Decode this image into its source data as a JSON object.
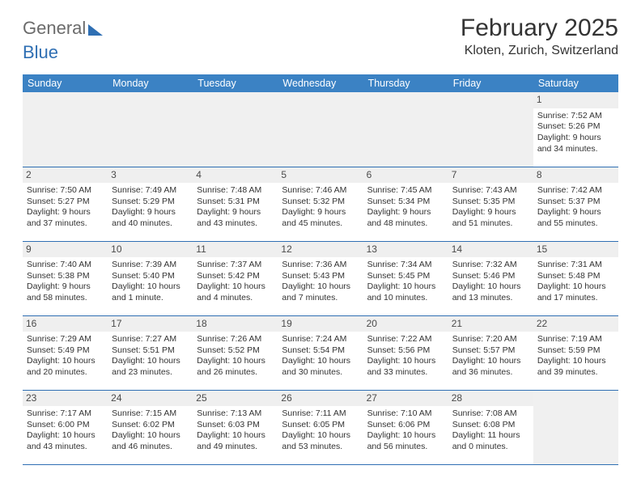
{
  "logo": {
    "word1": "General",
    "word2": "Blue"
  },
  "title": "February 2025",
  "location": "Kloten, Zurich, Switzerland",
  "colors": {
    "header_bg": "#3b82c4",
    "header_text": "#ffffff",
    "rule": "#2f6fb3",
    "daynum_bg": "#efefef",
    "text": "#333333"
  },
  "weekdays": [
    "Sunday",
    "Monday",
    "Tuesday",
    "Wednesday",
    "Thursday",
    "Friday",
    "Saturday"
  ],
  "leading_blanks": 6,
  "days": [
    {
      "n": 1,
      "sunrise": "7:52 AM",
      "sunset": "5:26 PM",
      "daylight": "9 hours and 34 minutes."
    },
    {
      "n": 2,
      "sunrise": "7:50 AM",
      "sunset": "5:27 PM",
      "daylight": "9 hours and 37 minutes."
    },
    {
      "n": 3,
      "sunrise": "7:49 AM",
      "sunset": "5:29 PM",
      "daylight": "9 hours and 40 minutes."
    },
    {
      "n": 4,
      "sunrise": "7:48 AM",
      "sunset": "5:31 PM",
      "daylight": "9 hours and 43 minutes."
    },
    {
      "n": 5,
      "sunrise": "7:46 AM",
      "sunset": "5:32 PM",
      "daylight": "9 hours and 45 minutes."
    },
    {
      "n": 6,
      "sunrise": "7:45 AM",
      "sunset": "5:34 PM",
      "daylight": "9 hours and 48 minutes."
    },
    {
      "n": 7,
      "sunrise": "7:43 AM",
      "sunset": "5:35 PM",
      "daylight": "9 hours and 51 minutes."
    },
    {
      "n": 8,
      "sunrise": "7:42 AM",
      "sunset": "5:37 PM",
      "daylight": "9 hours and 55 minutes."
    },
    {
      "n": 9,
      "sunrise": "7:40 AM",
      "sunset": "5:38 PM",
      "daylight": "9 hours and 58 minutes."
    },
    {
      "n": 10,
      "sunrise": "7:39 AM",
      "sunset": "5:40 PM",
      "daylight": "10 hours and 1 minute."
    },
    {
      "n": 11,
      "sunrise": "7:37 AM",
      "sunset": "5:42 PM",
      "daylight": "10 hours and 4 minutes."
    },
    {
      "n": 12,
      "sunrise": "7:36 AM",
      "sunset": "5:43 PM",
      "daylight": "10 hours and 7 minutes."
    },
    {
      "n": 13,
      "sunrise": "7:34 AM",
      "sunset": "5:45 PM",
      "daylight": "10 hours and 10 minutes."
    },
    {
      "n": 14,
      "sunrise": "7:32 AM",
      "sunset": "5:46 PM",
      "daylight": "10 hours and 13 minutes."
    },
    {
      "n": 15,
      "sunrise": "7:31 AM",
      "sunset": "5:48 PM",
      "daylight": "10 hours and 17 minutes."
    },
    {
      "n": 16,
      "sunrise": "7:29 AM",
      "sunset": "5:49 PM",
      "daylight": "10 hours and 20 minutes."
    },
    {
      "n": 17,
      "sunrise": "7:27 AM",
      "sunset": "5:51 PM",
      "daylight": "10 hours and 23 minutes."
    },
    {
      "n": 18,
      "sunrise": "7:26 AM",
      "sunset": "5:52 PM",
      "daylight": "10 hours and 26 minutes."
    },
    {
      "n": 19,
      "sunrise": "7:24 AM",
      "sunset": "5:54 PM",
      "daylight": "10 hours and 30 minutes."
    },
    {
      "n": 20,
      "sunrise": "7:22 AM",
      "sunset": "5:56 PM",
      "daylight": "10 hours and 33 minutes."
    },
    {
      "n": 21,
      "sunrise": "7:20 AM",
      "sunset": "5:57 PM",
      "daylight": "10 hours and 36 minutes."
    },
    {
      "n": 22,
      "sunrise": "7:19 AM",
      "sunset": "5:59 PM",
      "daylight": "10 hours and 39 minutes."
    },
    {
      "n": 23,
      "sunrise": "7:17 AM",
      "sunset": "6:00 PM",
      "daylight": "10 hours and 43 minutes."
    },
    {
      "n": 24,
      "sunrise": "7:15 AM",
      "sunset": "6:02 PM",
      "daylight": "10 hours and 46 minutes."
    },
    {
      "n": 25,
      "sunrise": "7:13 AM",
      "sunset": "6:03 PM",
      "daylight": "10 hours and 49 minutes."
    },
    {
      "n": 26,
      "sunrise": "7:11 AM",
      "sunset": "6:05 PM",
      "daylight": "10 hours and 53 minutes."
    },
    {
      "n": 27,
      "sunrise": "7:10 AM",
      "sunset": "6:06 PM",
      "daylight": "10 hours and 56 minutes."
    },
    {
      "n": 28,
      "sunrise": "7:08 AM",
      "sunset": "6:08 PM",
      "daylight": "11 hours and 0 minutes."
    }
  ],
  "labels": {
    "sunrise": "Sunrise:",
    "sunset": "Sunset:",
    "daylight": "Daylight:"
  }
}
